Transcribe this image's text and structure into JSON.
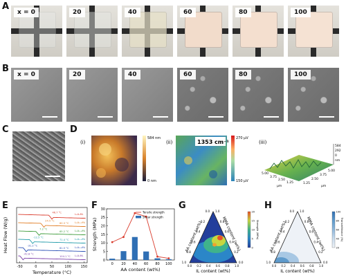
{
  "panels": {
    "A": {
      "letter": "A",
      "tiles": [
        {
          "label": "x = 0",
          "color": "#e9ecea",
          "opacity": 0.35
        },
        {
          "label": "20",
          "color": "#e6e9e4",
          "opacity": 0.45
        },
        {
          "label": "40",
          "color": "#e8e2c8",
          "opacity": 0.7
        },
        {
          "label": "60",
          "color": "#f2dccb",
          "opacity": 1
        },
        {
          "label": "80",
          "color": "#f4dfcf",
          "opacity": 1
        },
        {
          "label": "100",
          "color": "#f5e2d3",
          "opacity": 1
        }
      ]
    },
    "B": {
      "letter": "B",
      "tiles": [
        {
          "label": "x = 0",
          "texture": "smooth"
        },
        {
          "label": "20",
          "texture": "smooth"
        },
        {
          "label": "40",
          "texture": "smooth"
        },
        {
          "label": "60",
          "texture": "rough"
        },
        {
          "label": "80",
          "texture": "rough"
        },
        {
          "label": "100",
          "texture": "rough"
        }
      ]
    },
    "C": {
      "letter": "C"
    },
    "D": {
      "letter": "D",
      "i": {
        "label": "(i)",
        "max": "584 nm",
        "min": "0 nm"
      },
      "ii": {
        "label": "(ii)",
        "wavenumber": "1353 cm⁻¹",
        "max": "270 µV",
        "min": "150 µV"
      },
      "iii": {
        "label": "(iii)",
        "z_ticks": [
          "584",
          "292",
          "0"
        ],
        "z_unit": "nm",
        "x_ticks": [
          "5.00",
          "3.75",
          "2.50",
          "1.25"
        ],
        "x_unit": "µm",
        "y_ticks": [
          "1.25",
          "2.50",
          "3.75",
          "5.00"
        ],
        "y_unit": "µm"
      }
    },
    "E": {
      "letter": "E"
    },
    "F": {
      "letter": "F"
    },
    "G": {
      "letter": "G"
    },
    "H": {
      "letter": "H"
    }
  },
  "chart_data": [
    {
      "id": "E",
      "type": "line",
      "xlabel": "Temperature (°C)",
      "ylabel": "Heat Flow (W/g)",
      "xlim": [
        -60,
        160
      ],
      "x_ticks": [
        "-50",
        "0",
        "50",
        "100",
        "150"
      ],
      "series": [
        {
          "name": "L₁A₀M₁",
          "tg": "46.7 °C",
          "offset": 0,
          "color": "#d93a2b"
        },
        {
          "name": "L₁A₀.₂M₁",
          "tg": "24.5 °C",
          "tg2": "60.3 °C",
          "offset": 1,
          "color": "#e07b20"
        },
        {
          "name": "L₁A₀.₄M₁",
          "tg": "7.2 °C",
          "tg2": "65.2 °C",
          "offset": 2,
          "color": "#3d9b3a"
        },
        {
          "name": "L₁A₀.₆M₁",
          "tg": "-12.5 °C",
          "tg2": "71.4 °C",
          "offset": 3,
          "color": "#1f9aa8"
        },
        {
          "name": "L₁A₀.₈M₁",
          "tg": "-31.2 °C",
          "tg2": "81.5 °C",
          "offset": 4,
          "color": "#2a4fb5"
        },
        {
          "name": "L₁A₁M₁",
          "tg": "-42.8 °C",
          "tg2": "104.1 °C",
          "offset": 5,
          "color": "#7a3ea8"
        }
      ]
    },
    {
      "id": "F",
      "type": "bar",
      "xlabel": "AA content (wt%)",
      "ylabel": "Strength (MPa)",
      "categories": [
        "0",
        "20",
        "40",
        "60",
        "80",
        "100"
      ],
      "ylim": [
        0,
        30
      ],
      "y_ticks": [
        "0",
        "5",
        "10",
        "15",
        "20",
        "25",
        "30"
      ],
      "series": [
        {
          "name": "Tensile strength",
          "kind": "line",
          "color": "#d93a2b",
          "values": [
            10.5,
            13.5,
            27.5,
            25.5,
            2.0,
            1.0
          ]
        },
        {
          "name": "Shear strength",
          "kind": "bar",
          "color": "#2f6fb4",
          "values": [
            0.8,
            5.2,
            13.5,
            5.0,
            1.0,
            0.5
          ]
        }
      ]
    },
    {
      "id": "G",
      "type": "heatmap",
      "xlabel": "IL content (wt%)",
      "left_label": "AA content (wt%)",
      "right_label": "MMA content (wt%)",
      "colorbar_label": "Strength (MPa)",
      "colorbar_ticks": [
        "0",
        "5",
        "10",
        "15",
        "20"
      ],
      "ticks": [
        "0.0",
        "0.2",
        "0.4",
        "0.6",
        "0.8",
        "1.0"
      ]
    },
    {
      "id": "H",
      "type": "heatmap",
      "xlabel": "IL content (wt%)",
      "left_label": "AA content (wt%)",
      "right_label": "MMA content (wt%)",
      "colorbar_label": "Transmittance (%)",
      "colorbar_ticks": [
        "20",
        "40",
        "60",
        "80",
        "100"
      ],
      "ticks": [
        "0.0",
        "0.2",
        "0.4",
        "0.6",
        "0.8",
        "1.0"
      ]
    }
  ]
}
